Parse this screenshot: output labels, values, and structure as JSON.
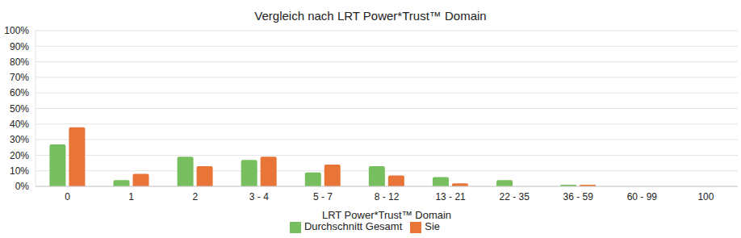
{
  "chart_data": {
    "type": "bar",
    "title": "Vergleich nach LRT Power*Trust™ Domain",
    "x_label": "LRT Power*Trust™ Domain",
    "categories": [
      "0",
      "1",
      "2",
      "3 - 4",
      "5 - 7",
      "8 - 12",
      "13 - 21",
      "22 - 35",
      "36 - 59",
      "60 - 99",
      "100"
    ],
    "series": [
      {
        "name": "Durchschnitt Gesamt",
        "color": "#77bf5e",
        "values": [
          27,
          4,
          19,
          17,
          9,
          13,
          6,
          4,
          1,
          0,
          0
        ]
      },
      {
        "name": "Sie",
        "color": "#e87537",
        "values": [
          38,
          8,
          13,
          19,
          14,
          7,
          2,
          0,
          1,
          0,
          0
        ]
      }
    ],
    "ylim": [
      0,
      100
    ],
    "yticks": [
      {
        "value": 0,
        "label": "0%"
      },
      {
        "value": 10,
        "label": "10%"
      },
      {
        "value": 20,
        "label": "20%"
      },
      {
        "value": 30,
        "label": "30%"
      },
      {
        "value": 40,
        "label": "40%"
      },
      {
        "value": 50,
        "label": "50%"
      },
      {
        "value": 60,
        "label": "60%"
      },
      {
        "value": 70,
        "label": "70%"
      },
      {
        "value": 80,
        "label": "80%"
      },
      {
        "value": 90,
        "label": "90%"
      },
      {
        "value": 100,
        "label": "100%"
      }
    ],
    "grid": true,
    "legend": "bottom"
  }
}
